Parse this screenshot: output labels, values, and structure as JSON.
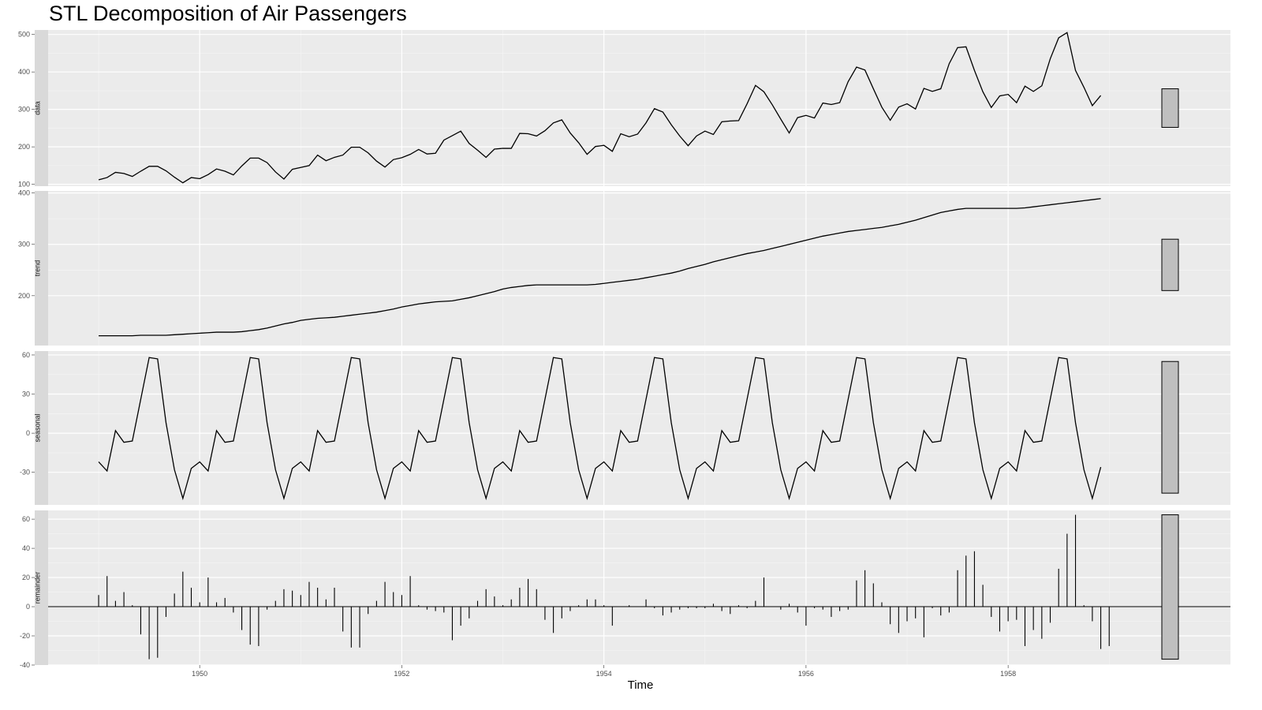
{
  "chart_data": {
    "type": "line",
    "title": "STL Decomposition of Air Passengers",
    "xlabel": "Time",
    "x_start": 1949,
    "x_end": 1958.917,
    "frequency": 12,
    "xlim": [
      1948.5,
      1960.2
    ],
    "x_ticks": [
      1950,
      1952,
      1954,
      1956,
      1958
    ],
    "grid": true,
    "panels": [
      {
        "name": "data",
        "kind": "line",
        "ylim": [
          95,
          512
        ],
        "y_ticks": [
          100,
          200,
          300,
          400,
          500
        ],
        "bar_range": [
          252,
          355
        ],
        "values": [
          112,
          118,
          132,
          129,
          121,
          135,
          148,
          148,
          136,
          119,
          104,
          118,
          115,
          126,
          141,
          135,
          125,
          149,
          170,
          170,
          158,
          133,
          114,
          140,
          145,
          150,
          178,
          163,
          172,
          178,
          199,
          199,
          184,
          162,
          146,
          166,
          171,
          180,
          193,
          181,
          183,
          218,
          230,
          242,
          209,
          191,
          172,
          194,
          196,
          196,
          236,
          235,
          229,
          243,
          264,
          272,
          237,
          211,
          180,
          201,
          204,
          188,
          235,
          227,
          234,
          264,
          302,
          293,
          259,
          229,
          203,
          229,
          242,
          233,
          267,
          269,
          270,
          315,
          364,
          347,
          312,
          274,
          237,
          278,
          284,
          277,
          317,
          313,
          318,
          374,
          413,
          405,
          355,
          306,
          271,
          306,
          315,
          301,
          356,
          348,
          355,
          422,
          465,
          467,
          404,
          347,
          305,
          336,
          340,
          318,
          362,
          348,
          363,
          435,
          491,
          505,
          404,
          359,
          310,
          337
        ]
      },
      {
        "name": "trend",
        "kind": "line",
        "ylim": [
          103,
          404
        ],
        "y_ticks": [
          200,
          300,
          400
        ],
        "bar_range": [
          210,
          310
        ],
        "values": [
          122,
          122,
          122,
          122,
          122,
          123,
          123,
          123,
          123,
          124,
          125,
          126,
          127,
          128,
          129,
          129,
          129,
          130,
          132,
          134,
          137,
          141,
          145,
          148,
          152,
          154,
          156,
          157,
          158,
          160,
          162,
          164,
          166,
          168,
          171,
          174,
          178,
          181,
          184,
          186,
          188,
          189,
          190,
          193,
          196,
          200,
          204,
          208,
          213,
          216,
          218,
          220,
          221,
          221,
          221,
          221,
          221,
          221,
          221,
          222,
          224,
          226,
          228,
          230,
          232,
          235,
          238,
          241,
          244,
          248,
          253,
          257,
          261,
          266,
          270,
          274,
          278,
          282,
          285,
          288,
          292,
          296,
          300,
          304,
          308,
          312,
          316,
          319,
          322,
          325,
          327,
          329,
          331,
          333,
          336,
          339,
          343,
          347,
          352,
          357,
          362,
          365,
          368,
          370,
          370,
          370,
          370,
          370,
          370,
          370,
          371,
          373,
          375,
          377,
          379,
          381,
          383,
          385,
          387,
          389
        ]
      },
      {
        "name": "seasonal",
        "kind": "line",
        "ylim": [
          -55,
          63
        ],
        "y_ticks": [
          -30,
          0,
          30,
          60
        ],
        "bar_range": [
          -46,
          55
        ],
        "values": [
          -22,
          -29,
          2,
          -7,
          -6,
          26,
          58,
          57,
          8,
          -28,
          -50,
          -27,
          -22,
          -29,
          2,
          -7,
          -6,
          26,
          58,
          57,
          8,
          -28,
          -50,
          -27,
          -22,
          -29,
          2,
          -7,
          -6,
          26,
          58,
          57,
          8,
          -28,
          -50,
          -27,
          -22,
          -29,
          2,
          -7,
          -6,
          26,
          58,
          57,
          8,
          -28,
          -50,
          -27,
          -22,
          -29,
          2,
          -7,
          -6,
          26,
          58,
          57,
          8,
          -28,
          -50,
          -27,
          -22,
          -29,
          2,
          -7,
          -6,
          26,
          58,
          57,
          8,
          -28,
          -50,
          -27,
          -22,
          -29,
          2,
          -7,
          -6,
          26,
          58,
          57,
          8,
          -28,
          -50,
          -27,
          -22,
          -29,
          2,
          -7,
          -6,
          26,
          58,
          57,
          8,
          -28,
          -50,
          -27,
          -22,
          -29,
          2,
          -7,
          -6,
          26,
          58,
          57,
          8,
          -28,
          -50,
          -27,
          -22,
          -29,
          2,
          -7,
          -6,
          26,
          58,
          57,
          8,
          -28,
          -50,
          -26
        ]
      },
      {
        "name": "remainder",
        "kind": "spikes",
        "ylim": [
          -40,
          66
        ],
        "y_ticks": [
          -40,
          -20,
          0,
          20,
          40,
          60
        ],
        "bar_range": [
          -36,
          63
        ],
        "values": [
          8,
          21,
          4,
          10,
          1,
          -19,
          -36,
          -35,
          -7,
          9,
          24,
          13,
          3,
          20,
          3,
          6,
          -4,
          -16,
          -26,
          -27,
          -2,
          4,
          12,
          11,
          8,
          17,
          13,
          5,
          13,
          -17,
          -28,
          -28,
          -5,
          4,
          17,
          10,
          8,
          21,
          1,
          -2,
          -3,
          -4,
          -23,
          -13,
          -8,
          4,
          12,
          7,
          1,
          5,
          13,
          19,
          12,
          -9,
          -18,
          -8,
          -3,
          1,
          5,
          5,
          1,
          -13,
          0,
          1,
          0,
          5,
          -1,
          -6,
          -4,
          -2,
          -1,
          -1,
          -1,
          2,
          -3,
          -5,
          1,
          -1,
          4,
          20,
          0,
          -2,
          2,
          -4,
          -13,
          -1,
          -2,
          -7,
          -3,
          -2,
          18,
          25,
          16,
          3,
          -12,
          -18,
          -10,
          -8,
          -21,
          -1,
          -6,
          -4,
          25,
          35,
          38,
          15,
          -7,
          -17,
          -10,
          -9,
          -27,
          -16,
          -22,
          -11,
          26,
          50,
          63,
          1,
          -10,
          -29,
          -27
        ]
      }
    ]
  }
}
